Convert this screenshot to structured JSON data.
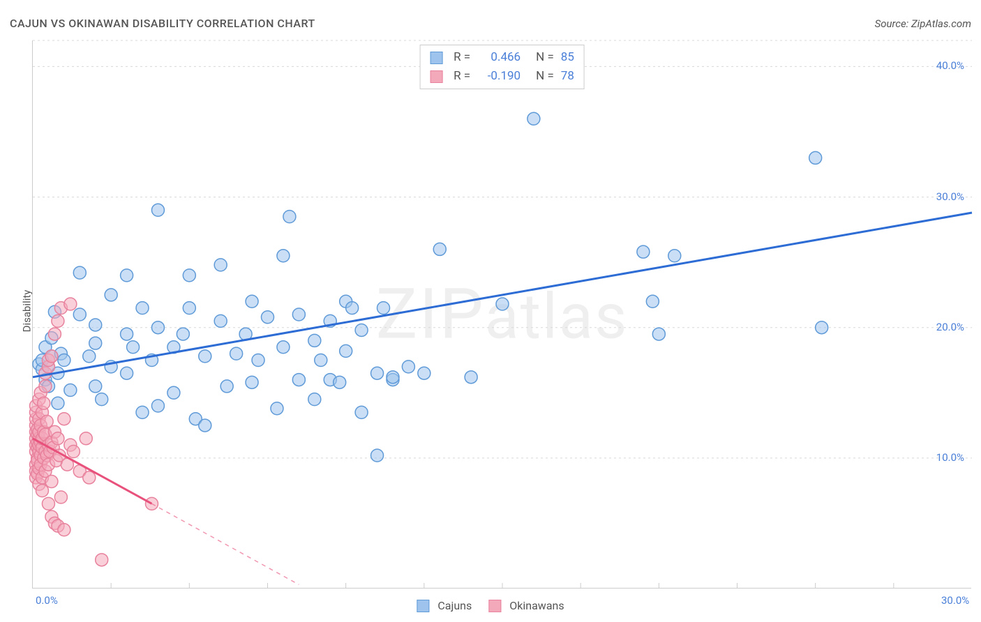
{
  "chart": {
    "type": "scatter",
    "title": "CAJUN VS OKINAWAN DISABILITY CORRELATION CHART",
    "source": "Source: ZipAtlas.com",
    "y_axis_label": "Disability",
    "watermark": "ZIPatlas",
    "background_color": "#ffffff",
    "grid_color": "#d8d8d8",
    "axis_color": "#cccccc",
    "title_color": "#555555",
    "title_fontsize": 16,
    "label_fontsize": 15,
    "tick_label_color": "#4a7fd8",
    "xlim": [
      0,
      30
    ],
    "ylim": [
      0,
      42
    ],
    "x_ticks": [
      {
        "val": 0,
        "label": "0.0%"
      },
      {
        "val": 30,
        "label": "30.0%"
      }
    ],
    "x_minor_ticks": [
      2.5,
      5,
      7.5,
      10,
      12.5,
      15,
      17.5,
      20,
      22.5,
      25,
      27.5
    ],
    "y_ticks": [
      {
        "val": 10,
        "label": "10.0%"
      },
      {
        "val": 20,
        "label": "20.0%"
      },
      {
        "val": 30,
        "label": "30.0%"
      },
      {
        "val": 40,
        "label": "40.0%"
      }
    ],
    "y_minor_grid": [
      0,
      10,
      20,
      30,
      42
    ],
    "marker_radius": 9,
    "marker_stroke_width": 1.5,
    "trend_line_width": 3,
    "series": [
      {
        "name": "Cajuns",
        "fill_color": "#9ec4ed",
        "fill_opacity": 0.55,
        "stroke_color": "#5f9ad8",
        "line_color": "#2c6cd4",
        "R": "0.466",
        "N": "85",
        "trend": {
          "x1": 0,
          "y1": 16.2,
          "x2": 30,
          "y2": 28.8
        },
        "points": [
          [
            0.2,
            17.2
          ],
          [
            0.3,
            16.8
          ],
          [
            0.3,
            17.5
          ],
          [
            0.4,
            16.0
          ],
          [
            0.4,
            18.5
          ],
          [
            0.5,
            17.0
          ],
          [
            0.5,
            15.5
          ],
          [
            0.6,
            17.8
          ],
          [
            0.6,
            19.2
          ],
          [
            0.7,
            21.2
          ],
          [
            0.8,
            16.5
          ],
          [
            0.8,
            14.2
          ],
          [
            0.9,
            18.0
          ],
          [
            1.0,
            17.5
          ],
          [
            1.2,
            15.2
          ],
          [
            1.5,
            21.0
          ],
          [
            1.5,
            24.2
          ],
          [
            1.8,
            17.8
          ],
          [
            2.0,
            18.8
          ],
          [
            2.0,
            20.2
          ],
          [
            2.0,
            15.5
          ],
          [
            2.2,
            14.5
          ],
          [
            2.5,
            22.5
          ],
          [
            2.5,
            17.0
          ],
          [
            3.0,
            24.0
          ],
          [
            3.0,
            19.5
          ],
          [
            3.0,
            16.5
          ],
          [
            3.2,
            18.5
          ],
          [
            3.5,
            21.5
          ],
          [
            3.5,
            13.5
          ],
          [
            3.8,
            17.5
          ],
          [
            4.0,
            20.0
          ],
          [
            4.0,
            14.0
          ],
          [
            4.0,
            29.0
          ],
          [
            4.5,
            18.5
          ],
          [
            4.5,
            15.0
          ],
          [
            4.8,
            19.5
          ],
          [
            5.0,
            21.5
          ],
          [
            5.0,
            24.0
          ],
          [
            5.2,
            13.0
          ],
          [
            5.5,
            17.8
          ],
          [
            5.5,
            12.5
          ],
          [
            6.0,
            20.5
          ],
          [
            6.0,
            24.8
          ],
          [
            6.2,
            15.5
          ],
          [
            6.5,
            18.0
          ],
          [
            6.8,
            19.5
          ],
          [
            7.0,
            22.0
          ],
          [
            7.0,
            15.8
          ],
          [
            7.2,
            17.5
          ],
          [
            7.5,
            20.8
          ],
          [
            7.8,
            13.8
          ],
          [
            8.0,
            18.5
          ],
          [
            8.0,
            25.5
          ],
          [
            8.2,
            28.5
          ],
          [
            8.5,
            16.0
          ],
          [
            8.5,
            21.0
          ],
          [
            9.0,
            19.0
          ],
          [
            9.0,
            14.5
          ],
          [
            9.2,
            17.5
          ],
          [
            9.5,
            20.5
          ],
          [
            9.5,
            16.0
          ],
          [
            9.8,
            15.8
          ],
          [
            10.0,
            18.2
          ],
          [
            10.0,
            22.0
          ],
          [
            10.2,
            21.5
          ],
          [
            10.5,
            13.5
          ],
          [
            10.5,
            19.8
          ],
          [
            11.0,
            10.2
          ],
          [
            11.0,
            16.5
          ],
          [
            11.2,
            21.5
          ],
          [
            11.5,
            16.0
          ],
          [
            11.5,
            16.2
          ],
          [
            12.0,
            17.0
          ],
          [
            12.5,
            16.5
          ],
          [
            13.0,
            26.0
          ],
          [
            14.0,
            16.2
          ],
          [
            15.0,
            21.8
          ],
          [
            16.0,
            36.0
          ],
          [
            19.5,
            25.8
          ],
          [
            19.8,
            22.0
          ],
          [
            20.0,
            19.5
          ],
          [
            20.5,
            25.5
          ],
          [
            25.0,
            33.0
          ],
          [
            25.2,
            20.0
          ]
        ]
      },
      {
        "name": "Okinawans",
        "fill_color": "#f4a9bb",
        "fill_opacity": 0.55,
        "stroke_color": "#e8819c",
        "line_color": "#e8517b",
        "R": "-0.190",
        "N": "78",
        "trend": {
          "x1": 0,
          "y1": 11.5,
          "x2": 3.8,
          "y2": 6.5
        },
        "trend_dashed": {
          "x1": 3.8,
          "y1": 6.5,
          "x2": 8.5,
          "y2": 0.3
        },
        "points": [
          [
            0.1,
            10.5
          ],
          [
            0.1,
            11.0
          ],
          [
            0.1,
            11.5
          ],
          [
            0.1,
            12.0
          ],
          [
            0.1,
            12.5
          ],
          [
            0.1,
            9.5
          ],
          [
            0.1,
            9.0
          ],
          [
            0.1,
            8.5
          ],
          [
            0.1,
            13.0
          ],
          [
            0.1,
            13.5
          ],
          [
            0.1,
            14.0
          ],
          [
            0.15,
            10.0
          ],
          [
            0.15,
            10.8
          ],
          [
            0.15,
            11.2
          ],
          [
            0.15,
            11.8
          ],
          [
            0.15,
            12.2
          ],
          [
            0.15,
            9.8
          ],
          [
            0.15,
            8.8
          ],
          [
            0.2,
            10.5
          ],
          [
            0.2,
            11.0
          ],
          [
            0.2,
            11.5
          ],
          [
            0.2,
            12.0
          ],
          [
            0.2,
            13.0
          ],
          [
            0.2,
            9.2
          ],
          [
            0.2,
            8.0
          ],
          [
            0.2,
            14.5
          ],
          [
            0.25,
            10.2
          ],
          [
            0.25,
            11.2
          ],
          [
            0.25,
            12.5
          ],
          [
            0.25,
            9.5
          ],
          [
            0.25,
            15.0
          ],
          [
            0.3,
            10.8
          ],
          [
            0.3,
            11.5
          ],
          [
            0.3,
            13.5
          ],
          [
            0.3,
            8.5
          ],
          [
            0.3,
            7.5
          ],
          [
            0.35,
            10.0
          ],
          [
            0.35,
            12.0
          ],
          [
            0.35,
            14.2
          ],
          [
            0.4,
            10.5
          ],
          [
            0.4,
            11.8
          ],
          [
            0.4,
            9.0
          ],
          [
            0.4,
            15.5
          ],
          [
            0.4,
            16.5
          ],
          [
            0.45,
            10.2
          ],
          [
            0.45,
            12.8
          ],
          [
            0.5,
            11.0
          ],
          [
            0.5,
            9.5
          ],
          [
            0.5,
            17.0
          ],
          [
            0.5,
            17.5
          ],
          [
            0.5,
            6.5
          ],
          [
            0.55,
            10.5
          ],
          [
            0.6,
            11.2
          ],
          [
            0.6,
            8.2
          ],
          [
            0.6,
            17.8
          ],
          [
            0.6,
            5.5
          ],
          [
            0.65,
            10.8
          ],
          [
            0.7,
            12.0
          ],
          [
            0.7,
            19.5
          ],
          [
            0.7,
            5.0
          ],
          [
            0.75,
            9.8
          ],
          [
            0.8,
            11.5
          ],
          [
            0.8,
            20.5
          ],
          [
            0.8,
            4.8
          ],
          [
            0.85,
            10.2
          ],
          [
            0.9,
            21.5
          ],
          [
            0.9,
            7.0
          ],
          [
            1.0,
            13.0
          ],
          [
            1.0,
            4.5
          ],
          [
            1.1,
            9.5
          ],
          [
            1.2,
            11.0
          ],
          [
            1.2,
            21.8
          ],
          [
            1.3,
            10.5
          ],
          [
            1.5,
            9.0
          ],
          [
            1.7,
            11.5
          ],
          [
            1.8,
            8.5
          ],
          [
            2.2,
            2.2
          ],
          [
            3.8,
            6.5
          ]
        ]
      }
    ],
    "legend_top": {
      "border_color": "#cccccc",
      "text_color": "#555555",
      "value_color": "#4a7fd8",
      "fontsize": 17
    },
    "legend_bottom": {
      "fontsize": 16,
      "color": "#555555"
    }
  }
}
